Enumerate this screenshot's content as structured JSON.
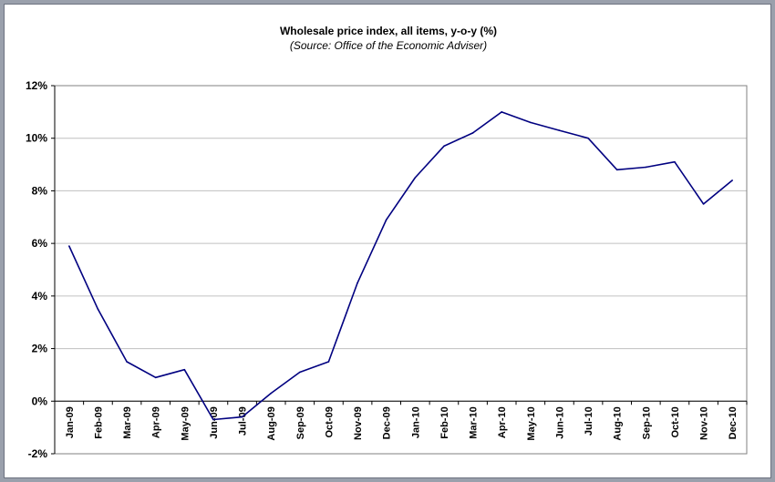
{
  "chart_data": {
    "type": "line",
    "title": "Wholesale price index, all items, y-o-y (%)",
    "subtitle": "(Source: Office of the Economic Adviser)",
    "xlabel": "",
    "ylabel": "",
    "ylim": [
      -2,
      12
    ],
    "y_ticks": [
      -2,
      0,
      2,
      4,
      6,
      8,
      10,
      12
    ],
    "y_tick_labels": [
      "-2%",
      "0%",
      "2%",
      "4%",
      "6%",
      "8%",
      "10%",
      "12%"
    ],
    "grid": true,
    "legend": "none",
    "line_color": "#000080",
    "categories": [
      "Jan-09",
      "Feb-09",
      "Mar-09",
      "Apr-09",
      "May-09",
      "Jun-09",
      "Jul-09",
      "Aug-09",
      "Sep-09",
      "Oct-09",
      "Nov-09",
      "Dec-09",
      "Jan-10",
      "Feb-10",
      "Mar-10",
      "Apr-10",
      "May-10",
      "Jun-10",
      "Jul-10",
      "Aug-10",
      "Sep-10",
      "Oct-10",
      "Nov-10",
      "Dec-10"
    ],
    "series": [
      {
        "values": [
          5.9,
          3.5,
          1.5,
          0.9,
          1.2,
          -0.7,
          -0.6,
          0.3,
          1.1,
          1.5,
          4.5,
          6.9,
          8.5,
          9.7,
          10.2,
          11.0,
          10.6,
          10.3,
          10.0,
          8.8,
          8.9,
          9.1,
          7.5,
          8.4
        ]
      }
    ]
  }
}
